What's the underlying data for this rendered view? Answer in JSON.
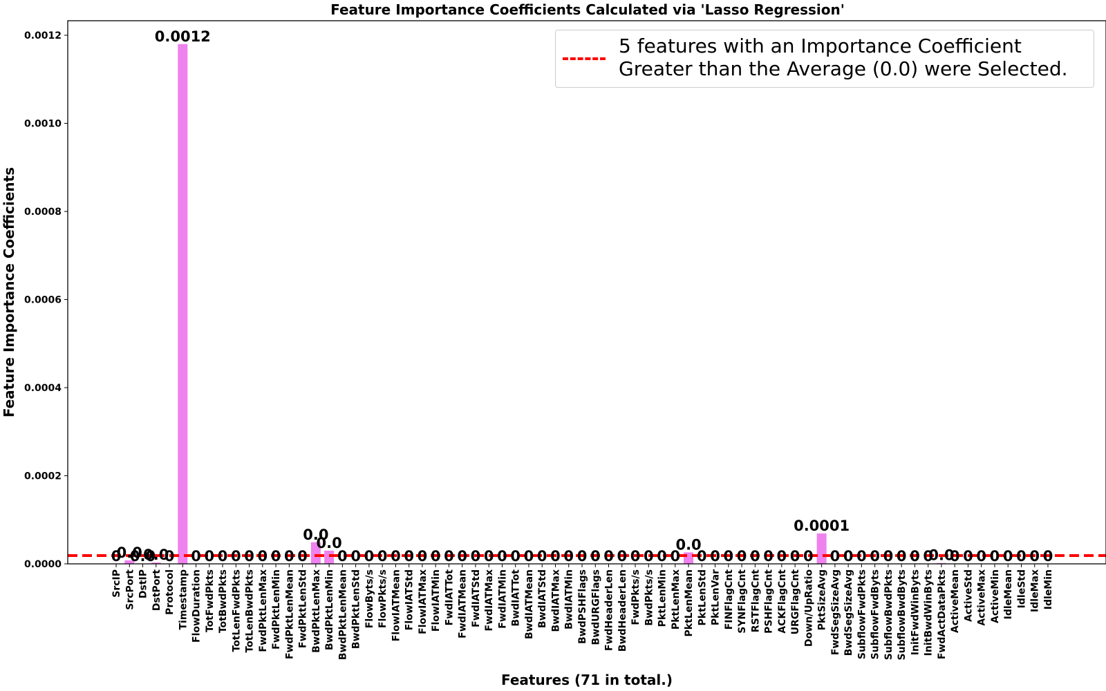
{
  "chart_data": {
    "type": "bar",
    "title": "Feature Importance Coefficients Calculated via 'Lasso Regression'",
    "xlabel": "Features (71 in total.)",
    "ylabel": "Feature Importance Coefficients",
    "ylim": [
      0,
      0.00124
    ],
    "yticks": [
      "0.0000",
      "0.0002",
      "0.0004",
      "0.0006",
      "0.0008",
      "0.0010",
      "0.0012"
    ],
    "bar_color": "#ee82ee",
    "categories": [
      "SrcIP",
      "SrcPort",
      "DstIP",
      "DstPort",
      "Protocol",
      "Timestamp",
      "FlowDuration",
      "TotFwdPkts",
      "TotBwdPkts",
      "TotLenFwdPkts",
      "TotLenBwdPkts",
      "FwdPktLenMax",
      "FwdPktLenMin",
      "FwdPktLenMean",
      "FwdPktLenStd",
      "BwdPktLenMax",
      "BwdPktLenMin",
      "BwdPktLenMean",
      "BwdPktLenStd",
      "FlowByts/s",
      "FlowPkts/s",
      "FlowIATMean",
      "FlowIATStd",
      "FlowIATMax",
      "FlowIATMin",
      "FwdIATTot",
      "FwdIATMean",
      "FwdIATStd",
      "FwdIATMax",
      "FwdIATMin",
      "BwdIATTot",
      "BwdIATMean",
      "BwdIATStd",
      "BwdIATMax",
      "BwdIATMin",
      "BwdPSHFlags",
      "BwdURGFlags",
      "FwdHeaderLen",
      "BwdHeaderLen",
      "FwdPkts/s",
      "BwdPkts/s",
      "PktLenMin",
      "PktLenMax",
      "PktLenMean",
      "PktLenStd",
      "PktLenVar",
      "FINFlagCnt",
      "SYNFlagCnt",
      "RSTFlagCnt",
      "PSHFlagCnt",
      "ACKFlagCnt",
      "URGFlagCnt",
      "Down/UpRatio",
      "PktSizeAvg",
      "FwdSegSizeAvg",
      "BwdSegSizeAvg",
      "SubflowFwdPkts",
      "SubflowFwdByts",
      "SubflowBwdPkts",
      "SubflowBwdByts",
      "InitFwdWinByts",
      "InitBwdWinByts",
      "FwdActDataPkts",
      "ActiveMean",
      "ActiveStd",
      "ActiveMax",
      "ActiveMin",
      "IdleMean",
      "IdleStd",
      "IdleMax",
      "IdleMin"
    ],
    "values": [
      0,
      8e-06,
      0,
      3e-06,
      0,
      0.00118,
      0,
      0,
      0,
      0,
      0,
      0,
      0,
      0,
      0,
      4.9e-05,
      3e-05,
      0,
      0,
      0,
      0,
      0,
      0,
      0,
      0,
      0,
      0,
      0,
      0,
      0,
      0,
      0,
      0,
      0,
      0,
      0,
      0,
      0,
      0,
      0,
      0,
      0,
      0,
      2.6e-05,
      0,
      0,
      0,
      0,
      0,
      0,
      0,
      0,
      0,
      6.9e-05,
      0,
      0,
      0,
      0,
      0,
      0,
      0,
      0,
      2e-06,
      0,
      0,
      0,
      0,
      0,
      0,
      0,
      0
    ],
    "data_labels": [
      "0",
      "0.0",
      "0.0",
      "0.0",
      "0",
      "0.0012",
      "0",
      "0",
      "0",
      "0",
      "0",
      "0",
      "0",
      "0",
      "0",
      "0.0",
      "0.0",
      "0",
      "0",
      "0",
      "0",
      "0",
      "0",
      "0",
      "0",
      "0",
      "0",
      "0",
      "0",
      "0",
      "0",
      "0",
      "0",
      "0",
      "0",
      "0",
      "0",
      "0",
      "0",
      "0",
      "0",
      "0",
      "0",
      "0.0",
      "0",
      "0",
      "0",
      "0",
      "0",
      "0",
      "0",
      "0",
      "0",
      "0.0001",
      "0",
      "0",
      "0",
      "0",
      "0",
      "0",
      "0",
      "0",
      "0.0",
      "0",
      "0",
      "0",
      "0",
      "0",
      "0",
      "0",
      "0"
    ],
    "average_line": {
      "value": 1.89e-05,
      "color": "#ff0000",
      "style": "dashed"
    },
    "legend": {
      "placement": "top-right",
      "lines": [
        "5 features with an Importance Coefficient",
        "Greater than the Average (0.0) were Selected."
      ]
    },
    "grid": false
  }
}
